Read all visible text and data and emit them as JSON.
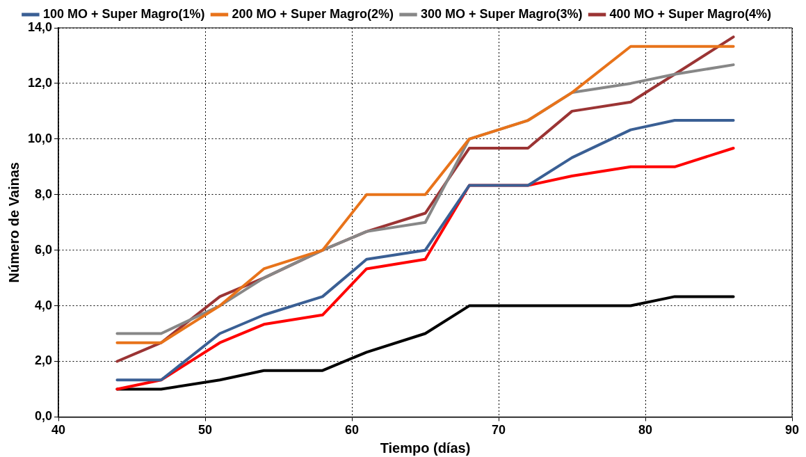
{
  "chart_data": {
    "type": "line",
    "xlabel": "Tiempo (días)",
    "ylabel": "Número de Vainas",
    "x": [
      44,
      47,
      51,
      54,
      58,
      61,
      65,
      68,
      72,
      75,
      79,
      82,
      86
    ],
    "xlim": [
      40,
      90
    ],
    "xticks": [
      40,
      50,
      60,
      70,
      80,
      90
    ],
    "ylim": [
      0,
      14
    ],
    "yticks": [
      {
        "value": 0,
        "label": "0,0"
      },
      {
        "value": 2,
        "label": "2,0"
      },
      {
        "value": 4,
        "label": "4,0"
      },
      {
        "value": 6,
        "label": "6,0"
      },
      {
        "value": 8,
        "label": "8,0"
      },
      {
        "value": 10,
        "label": "10,0"
      },
      {
        "value": 12,
        "label": "12,0"
      },
      {
        "value": 14,
        "label": "14,0"
      }
    ],
    "grid": true,
    "legend": "top",
    "marker": "none",
    "line_style": "solid",
    "series": [
      {
        "name": "100 MO + Super Magro(1%)",
        "color": "#3a5f94",
        "values": [
          1.33,
          1.33,
          3,
          3.67,
          4.33,
          5.67,
          6,
          8.33,
          8.33,
          9.33,
          10.33,
          10.67,
          10.67
        ]
      },
      {
        "name": "200 MO + Super Magro(2%)",
        "color": "#e8731a",
        "values": [
          2.67,
          2.67,
          4,
          5.33,
          6,
          8,
          8,
          10,
          10.67,
          11.67,
          13.33,
          13.33,
          13.33
        ]
      },
      {
        "name": "300 MO + Super Magro(3%)",
        "color": "#878787",
        "values": [
          3,
          3,
          4,
          5,
          6,
          6.67,
          7,
          10,
          10.67,
          11.67,
          12,
          12.33,
          12.67
        ]
      },
      {
        "name": "400 MO + Super Magro(4%)",
        "color": "#9b3434",
        "values": [
          2,
          2.67,
          4.33,
          5,
          6,
          6.67,
          7.33,
          9.67,
          9.67,
          11,
          11.33,
          12.33,
          13.67
        ]
      },
      {
        "color": "#ff0000",
        "values": [
          1,
          1.33,
          2.67,
          3.33,
          3.67,
          5.33,
          5.67,
          8.33,
          8.33,
          8.67,
          9,
          9,
          9.67
        ]
      },
      {
        "color": "#000000",
        "values": [
          1,
          1,
          1.33,
          1.67,
          1.67,
          2.33,
          3,
          4,
          4,
          4,
          4,
          4.33,
          4.33
        ]
      }
    ]
  }
}
